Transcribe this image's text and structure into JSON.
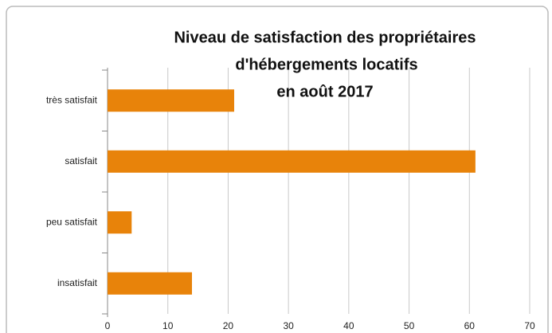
{
  "chart_data": {
    "type": "barh",
    "title": [
      "Niveau de satisfaction des propriétaires",
      "d'hébergements locatifs",
      "en août 2017"
    ],
    "categories": [
      "très satisfait",
      "satisfait",
      "peu satisfait",
      "insatisfait"
    ],
    "values": [
      21,
      61,
      4,
      14
    ],
    "color": "#e8830a",
    "xlim": [
      0,
      70
    ],
    "xticks": [
      0,
      10,
      20,
      30,
      40,
      50,
      60,
      70
    ],
    "grid": true
  }
}
